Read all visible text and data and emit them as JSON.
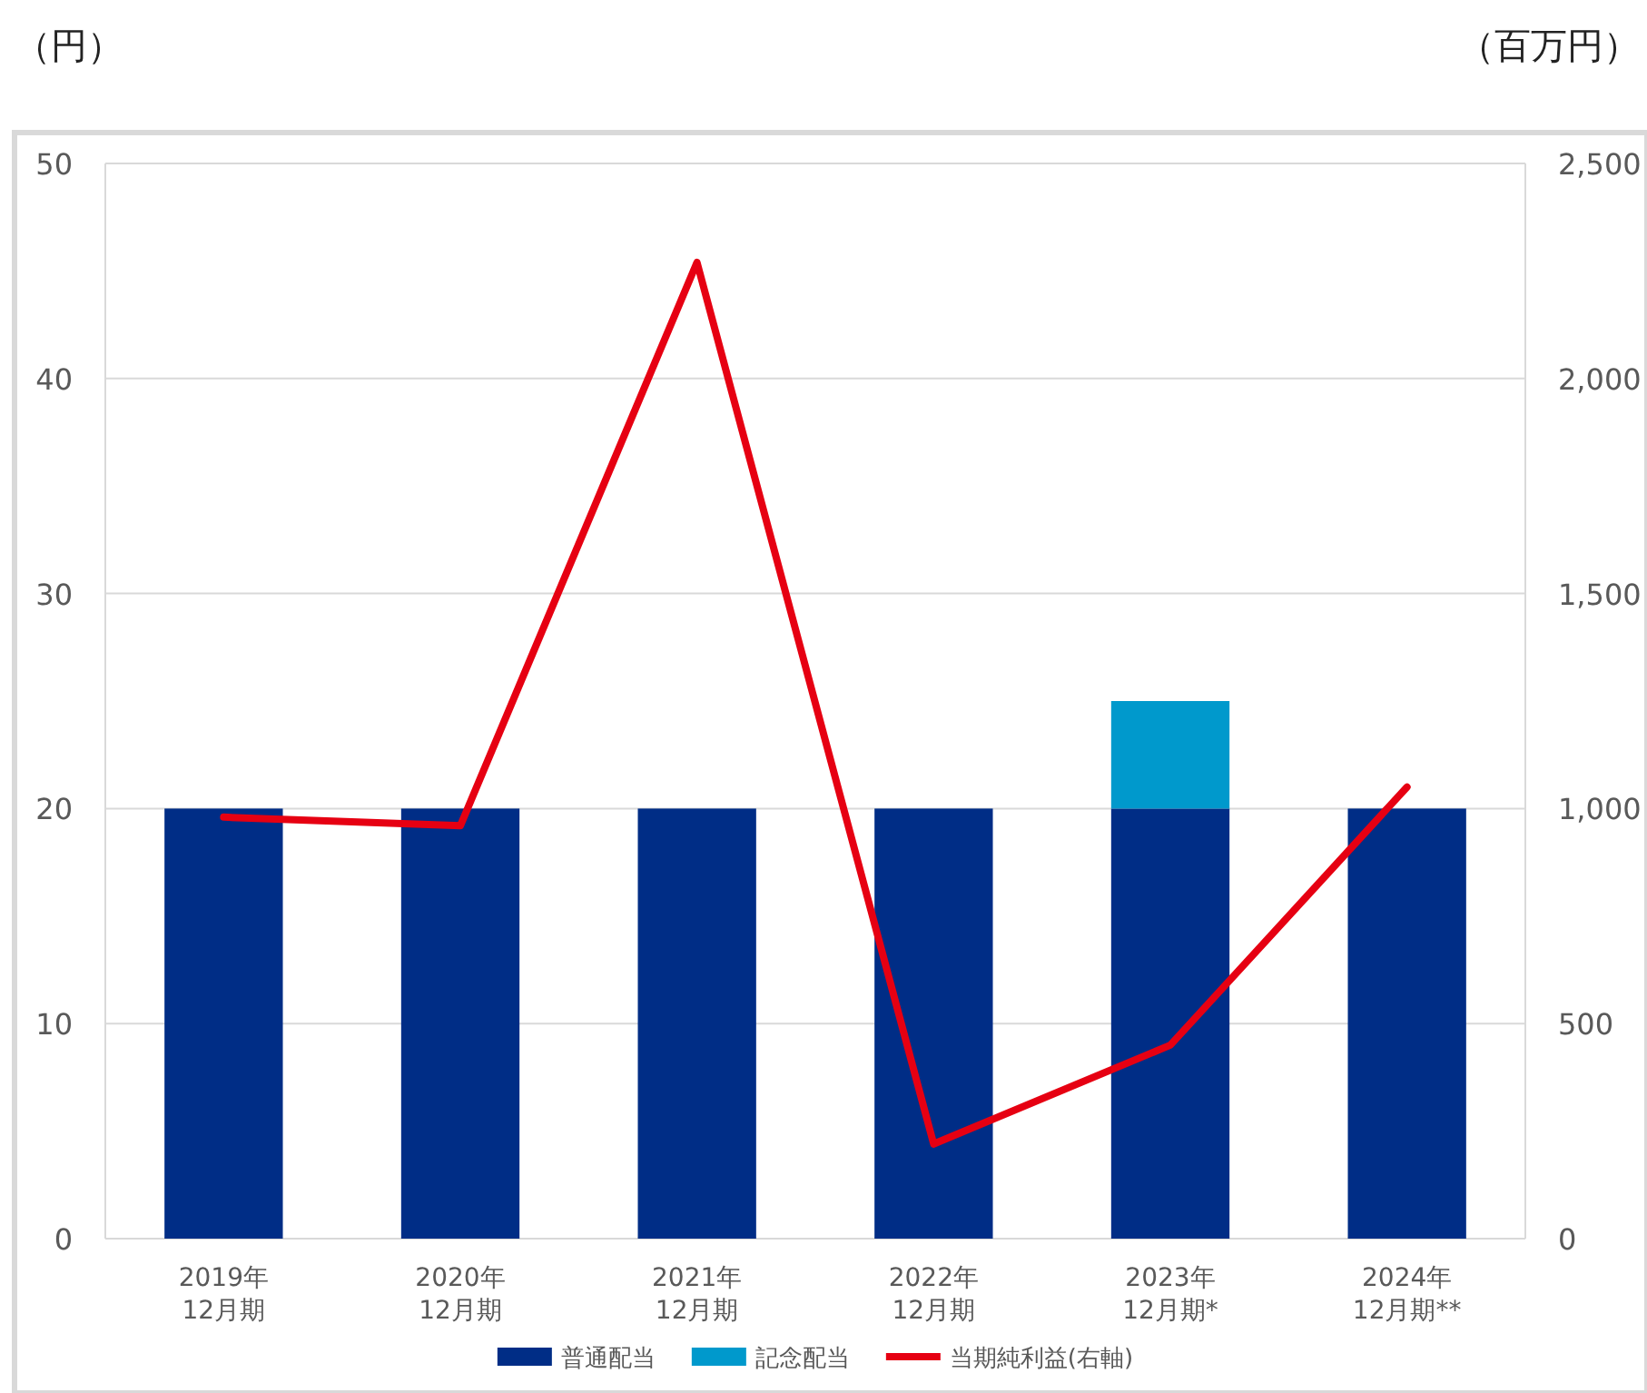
{
  "chart_data": {
    "type": "bar",
    "stacked": true,
    "ylabel": "（円）",
    "y2label": "（百万円）",
    "categories": [
      "2019年\n12月期",
      "2020年\n12月期",
      "2021年\n12月期",
      "2022年\n12月期",
      "2023年\n12月期*",
      "2024年\n12月期**"
    ],
    "series": [
      {
        "name": "普通配当",
        "color": "#002d86",
        "values": [
          20,
          20,
          20,
          20,
          20,
          20
        ]
      },
      {
        "name": "記念配当",
        "color": "#0099cc",
        "values": [
          null,
          null,
          null,
          null,
          5,
          null
        ]
      },
      {
        "name": "当期純利益(右軸)",
        "type": "line",
        "axis": "y2",
        "color": "#e60012",
        "values": [
          980,
          960,
          2270,
          220,
          450,
          1050
        ]
      }
    ],
    "ylim": [
      0,
      50
    ],
    "yticks": [
      0,
      10,
      20,
      30,
      40,
      50
    ],
    "y2lim": [
      0,
      2500
    ],
    "y2ticks": [
      0,
      500,
      {
        "value": 1000,
        "label": "1,000"
      },
      {
        "value": 1500,
        "label": "1,500"
      },
      {
        "value": 2000,
        "label": "2,000"
      },
      {
        "value": 2500,
        "label": "2,500"
      }
    ],
    "grid": "y",
    "legend": "bottom"
  }
}
